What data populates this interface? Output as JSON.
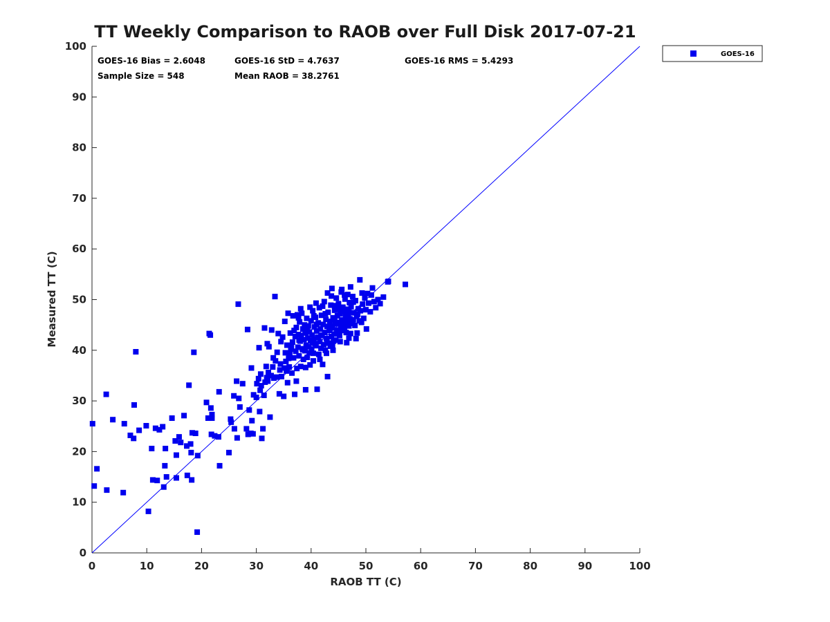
{
  "chart_data": {
    "type": "scatter",
    "title": "TT Weekly Comparison to RAOB over Full Disk 2017-07-21",
    "xlabel": "RAOB TT (C)",
    "ylabel": "Measured TT (C)",
    "xlim": [
      0,
      100
    ],
    "ylim": [
      0,
      100
    ],
    "xticks": [
      "0",
      "10",
      "20",
      "30",
      "40",
      "50",
      "60",
      "70",
      "80",
      "90",
      "100"
    ],
    "yticks": [
      "0",
      "10",
      "20",
      "30",
      "40",
      "50",
      "60",
      "70",
      "80",
      "90",
      "100"
    ],
    "grid": false,
    "legend_position": "top-right, outside plot",
    "reference_line": {
      "x": [
        0,
        100
      ],
      "y": [
        0,
        100
      ],
      "color": "#0000ff"
    },
    "stats": {
      "bias": "GOES-16 Bias = 2.6048",
      "std": "GOES-16 StD = 4.7637",
      "rms": "GOES-16 RMS = 5.4293",
      "sample_size": "Sample Size = 548",
      "mean_raob": "Mean RAOB = 38.2761"
    },
    "series": [
      {
        "name": "GOES-16",
        "color": "#0000ee",
        "marker": "square",
        "points": [
          [
            0.1,
            25.5
          ],
          [
            0.4,
            13.2
          ],
          [
            0.9,
            16.6
          ],
          [
            2.6,
            31.3
          ],
          [
            2.7,
            12.4
          ],
          [
            3.8,
            26.3
          ],
          [
            5.7,
            11.9
          ],
          [
            5.9,
            25.5
          ],
          [
            7.0,
            23.2
          ],
          [
            7.6,
            22.6
          ],
          [
            7.7,
            29.2
          ],
          [
            8.0,
            39.7
          ],
          [
            8.6,
            24.2
          ],
          [
            9.9,
            25.1
          ],
          [
            10.3,
            8.2
          ],
          [
            10.9,
            20.6
          ],
          [
            11.1,
            14.4
          ],
          [
            11.6,
            24.6
          ],
          [
            11.9,
            14.3
          ],
          [
            12.3,
            24.3
          ],
          [
            12.9,
            24.9
          ],
          [
            13.1,
            13.0
          ],
          [
            13.3,
            17.2
          ],
          [
            13.4,
            20.6
          ],
          [
            13.6,
            15.0
          ],
          [
            14.6,
            26.6
          ],
          [
            15.2,
            22.1
          ],
          [
            15.4,
            19.3
          ],
          [
            15.4,
            14.8
          ],
          [
            15.9,
            22.9
          ],
          [
            16.2,
            21.8
          ],
          [
            16.8,
            27.1
          ],
          [
            17.3,
            21.1
          ],
          [
            17.4,
            15.3
          ],
          [
            17.7,
            33.1
          ],
          [
            18.0,
            21.5
          ],
          [
            18.1,
            19.8
          ],
          [
            18.2,
            14.4
          ],
          [
            18.3,
            23.7
          ],
          [
            18.6,
            39.6
          ],
          [
            18.9,
            23.6
          ],
          [
            19.2,
            4.1
          ],
          [
            19.3,
            19.2
          ],
          [
            20.9,
            29.7
          ],
          [
            21.2,
            26.6
          ],
          [
            21.4,
            43.3
          ],
          [
            21.6,
            43.0
          ],
          [
            21.7,
            28.6
          ],
          [
            21.8,
            23.4
          ],
          [
            21.9,
            26.6
          ],
          [
            21.9,
            27.3
          ],
          [
            22.4,
            23.1
          ],
          [
            23.1,
            22.9
          ],
          [
            23.2,
            31.8
          ],
          [
            23.3,
            17.2
          ],
          [
            25.0,
            19.8
          ],
          [
            25.3,
            26.4
          ],
          [
            25.4,
            25.8
          ],
          [
            25.9,
            31.0
          ],
          [
            26.0,
            24.5
          ],
          [
            26.4,
            33.9
          ],
          [
            26.5,
            22.7
          ],
          [
            26.7,
            49.1
          ],
          [
            26.8,
            30.5
          ],
          [
            27.0,
            28.8
          ],
          [
            27.5,
            33.4
          ],
          [
            28.2,
            24.5
          ],
          [
            28.4,
            44.1
          ],
          [
            28.5,
            23.4
          ],
          [
            28.7,
            28.2
          ],
          [
            29.0,
            23.6
          ],
          [
            29.1,
            36.5
          ],
          [
            29.2,
            26.1
          ],
          [
            29.4,
            23.5
          ],
          [
            29.5,
            31.2
          ],
          [
            30.0,
            30.7
          ],
          [
            30.1,
            33.4
          ],
          [
            30.4,
            34.4
          ],
          [
            30.5,
            40.5
          ],
          [
            30.6,
            27.9
          ],
          [
            30.7,
            32.1
          ],
          [
            30.9,
            33.0
          ],
          [
            31.0,
            22.6
          ],
          [
            31.2,
            24.5
          ],
          [
            31.4,
            31.1
          ],
          [
            31.5,
            44.4
          ],
          [
            31.6,
            33.7
          ],
          [
            31.8,
            36.8
          ],
          [
            32.0,
            41.3
          ],
          [
            32.1,
            33.9
          ],
          [
            32.2,
            35.6
          ],
          [
            32.3,
            40.7
          ],
          [
            32.5,
            26.8
          ],
          [
            32.8,
            44.0
          ],
          [
            33.0,
            36.7
          ],
          [
            33.2,
            34.5
          ],
          [
            33.4,
            50.6
          ],
          [
            33.5,
            37.9
          ],
          [
            33.7,
            34.7
          ],
          [
            33.8,
            39.6
          ],
          [
            34.0,
            43.3
          ],
          [
            34.2,
            31.4
          ],
          [
            34.4,
            37.3
          ],
          [
            34.6,
            34.8
          ],
          [
            34.8,
            42.6
          ],
          [
            35.0,
            30.9
          ],
          [
            35.1,
            36.5
          ],
          [
            35.2,
            45.7
          ],
          [
            35.3,
            39.5
          ],
          [
            35.5,
            35.9
          ],
          [
            35.6,
            41.0
          ],
          [
            35.8,
            47.3
          ],
          [
            35.9,
            38.4
          ],
          [
            36.0,
            36.7
          ],
          [
            36.2,
            43.4
          ],
          [
            36.3,
            40.2
          ],
          [
            36.5,
            35.5
          ],
          [
            36.6,
            41.6
          ],
          [
            36.8,
            38.5
          ],
          [
            37.0,
            31.3
          ],
          [
            37.1,
            42.7
          ],
          [
            37.2,
            39.8
          ],
          [
            37.3,
            44.5
          ],
          [
            37.4,
            36.4
          ],
          [
            37.5,
            47.0
          ],
          [
            37.6,
            40.6
          ],
          [
            37.7,
            43.1
          ],
          [
            37.8,
            38.9
          ],
          [
            37.9,
            45.6
          ],
          [
            38.0,
            41.8
          ],
          [
            38.1,
            36.8
          ],
          [
            38.2,
            42.9
          ],
          [
            38.3,
            47.3
          ],
          [
            38.4,
            40.3
          ],
          [
            38.5,
            44.2
          ],
          [
            38.6,
            38.2
          ],
          [
            38.7,
            42.1
          ],
          [
            38.8,
            45.0
          ],
          [
            38.9,
            39.9
          ],
          [
            39.0,
            32.2
          ],
          [
            39.0,
            43.4
          ],
          [
            39.1,
            41.0
          ],
          [
            39.2,
            46.3
          ],
          [
            39.3,
            38.6
          ],
          [
            39.4,
            42.4
          ],
          [
            39.5,
            44.8
          ],
          [
            39.6,
            40.7
          ],
          [
            39.7,
            43.6
          ],
          [
            39.8,
            37.1
          ],
          [
            39.9,
            41.9
          ],
          [
            40.0,
            45.8
          ],
          [
            40.1,
            40.2
          ],
          [
            40.2,
            43.0
          ],
          [
            40.3,
            47.8
          ],
          [
            40.4,
            39.4
          ],
          [
            40.5,
            42.1
          ],
          [
            40.6,
            44.6
          ],
          [
            40.7,
            41.3
          ],
          [
            40.8,
            46.5
          ],
          [
            40.9,
            40.9
          ],
          [
            41.0,
            43.8
          ],
          [
            41.1,
            32.3
          ],
          [
            41.2,
            42.5
          ],
          [
            41.3,
            45.4
          ],
          [
            41.4,
            39.2
          ],
          [
            41.5,
            48.4
          ],
          [
            41.6,
            41.7
          ],
          [
            41.7,
            44.2
          ],
          [
            41.8,
            40.4
          ],
          [
            41.9,
            46.9
          ],
          [
            42.0,
            42.9
          ],
          [
            42.1,
            37.2
          ],
          [
            42.2,
            45.1
          ],
          [
            42.3,
            41.1
          ],
          [
            42.4,
            49.6
          ],
          [
            42.5,
            43.5
          ],
          [
            42.6,
            40.0
          ],
          [
            42.7,
            46.1
          ],
          [
            42.8,
            42.3
          ],
          [
            42.9,
            44.7
          ],
          [
            43.0,
            34.8
          ],
          [
            43.1,
            47.5
          ],
          [
            43.2,
            41.4
          ],
          [
            43.3,
            43.9
          ],
          [
            43.4,
            45.7
          ],
          [
            43.5,
            40.8
          ],
          [
            43.6,
            48.9
          ],
          [
            43.7,
            42.7
          ],
          [
            43.8,
            52.2
          ],
          [
            43.9,
            44.4
          ],
          [
            44.0,
            46.4
          ],
          [
            44.1,
            41.8
          ],
          [
            44.2,
            43.2
          ],
          [
            44.3,
            47.9
          ],
          [
            44.4,
            45.2
          ],
          [
            44.5,
            42.0
          ],
          [
            44.6,
            50.3
          ],
          [
            44.7,
            44.0
          ],
          [
            44.8,
            46.8
          ],
          [
            44.9,
            43.4
          ],
          [
            45.0,
            49.2
          ],
          [
            45.1,
            45.5
          ],
          [
            45.2,
            42.9
          ],
          [
            45.3,
            47.2
          ],
          [
            45.4,
            44.6
          ],
          [
            45.5,
            51.5
          ],
          [
            45.6,
            46.0
          ],
          [
            45.7,
            43.9
          ],
          [
            45.8,
            48.5
          ],
          [
            45.9,
            45.0
          ],
          [
            46.0,
            47.6
          ],
          [
            46.1,
            44.3
          ],
          [
            46.2,
            50.1
          ],
          [
            46.3,
            46.6
          ],
          [
            46.4,
            43.5
          ],
          [
            46.5,
            48.1
          ],
          [
            46.6,
            45.7
          ],
          [
            46.7,
            51.0
          ],
          [
            46.8,
            47.0
          ],
          [
            46.9,
            44.8
          ],
          [
            47.0,
            49.4
          ],
          [
            47.1,
            46.2
          ],
          [
            47.2,
            43.3
          ],
          [
            47.3,
            48.6
          ],
          [
            47.5,
            45.3
          ],
          [
            47.6,
            50.6
          ],
          [
            47.8,
            47.4
          ],
          [
            48.0,
            44.9
          ],
          [
            48.1,
            49.8
          ],
          [
            48.3,
            46.7
          ],
          [
            48.4,
            43.4
          ],
          [
            48.6,
            48.2
          ],
          [
            48.8,
            45.8
          ],
          [
            48.9,
            53.9
          ],
          [
            49.0,
            47.8
          ],
          [
            49.2,
            45.5
          ],
          [
            49.4,
            49.1
          ],
          [
            49.6,
            46.3
          ],
          [
            49.8,
            50.3
          ],
          [
            50.0,
            48.0
          ],
          [
            50.3,
            51.2
          ],
          [
            50.5,
            49.3
          ],
          [
            50.8,
            47.6
          ],
          [
            51.0,
            50.9
          ],
          [
            51.2,
            52.3
          ],
          [
            51.5,
            49.6
          ],
          [
            51.8,
            48.4
          ],
          [
            52.2,
            50.0
          ],
          [
            52.6,
            49.2
          ],
          [
            53.2,
            50.5
          ],
          [
            54.0,
            53.5
          ],
          [
            54.1,
            53.6
          ],
          [
            57.2,
            53.0
          ],
          [
            36.4,
            40.7
          ],
          [
            37.8,
            42.0
          ],
          [
            38.5,
            40.1
          ],
          [
            39.3,
            43.8
          ],
          [
            40.2,
            41.5
          ],
          [
            41.0,
            45.1
          ],
          [
            41.8,
            43.0
          ],
          [
            42.6,
            47.2
          ],
          [
            43.5,
            44.8
          ],
          [
            44.3,
            46.0
          ],
          [
            45.2,
            48.2
          ],
          [
            46.0,
            45.6
          ],
          [
            46.9,
            47.8
          ],
          [
            47.7,
            49.5
          ],
          [
            48.5,
            47.1
          ],
          [
            49.3,
            51.3
          ],
          [
            38.9,
            44.0
          ],
          [
            39.7,
            39.5
          ],
          [
            40.5,
            46.8
          ],
          [
            41.3,
            42.6
          ],
          [
            42.1,
            48.7
          ],
          [
            42.9,
            41.6
          ],
          [
            43.7,
            50.7
          ],
          [
            44.5,
            48.8
          ],
          [
            45.3,
            41.7
          ],
          [
            46.1,
            50.9
          ],
          [
            46.9,
            42.4
          ],
          [
            47.7,
            46.0
          ],
          [
            35.4,
            37.8
          ],
          [
            36.1,
            39.3
          ],
          [
            37.3,
            33.9
          ],
          [
            33.1,
            38.5
          ],
          [
            32.7,
            35.0
          ],
          [
            31.9,
            34.6
          ],
          [
            30.8,
            35.3
          ],
          [
            34.5,
            41.7
          ],
          [
            39.8,
            48.5
          ],
          [
            43.0,
            51.3
          ],
          [
            45.6,
            52.0
          ],
          [
            47.2,
            52.5
          ],
          [
            36.7,
            46.8
          ],
          [
            38.1,
            48.2
          ],
          [
            40.9,
            49.3
          ],
          [
            44.0,
            40.0
          ],
          [
            46.5,
            41.5
          ],
          [
            48.2,
            42.3
          ],
          [
            50.1,
            44.2
          ],
          [
            41.6,
            38.2
          ],
          [
            42.8,
            39.4
          ],
          [
            43.9,
            40.9
          ],
          [
            40.4,
            37.9
          ],
          [
            39.0,
            36.6
          ],
          [
            36.9,
            43.9
          ],
          [
            37.7,
            46.4
          ],
          [
            34.3,
            36.1
          ],
          [
            35.7,
            33.6
          ]
        ]
      }
    ]
  }
}
